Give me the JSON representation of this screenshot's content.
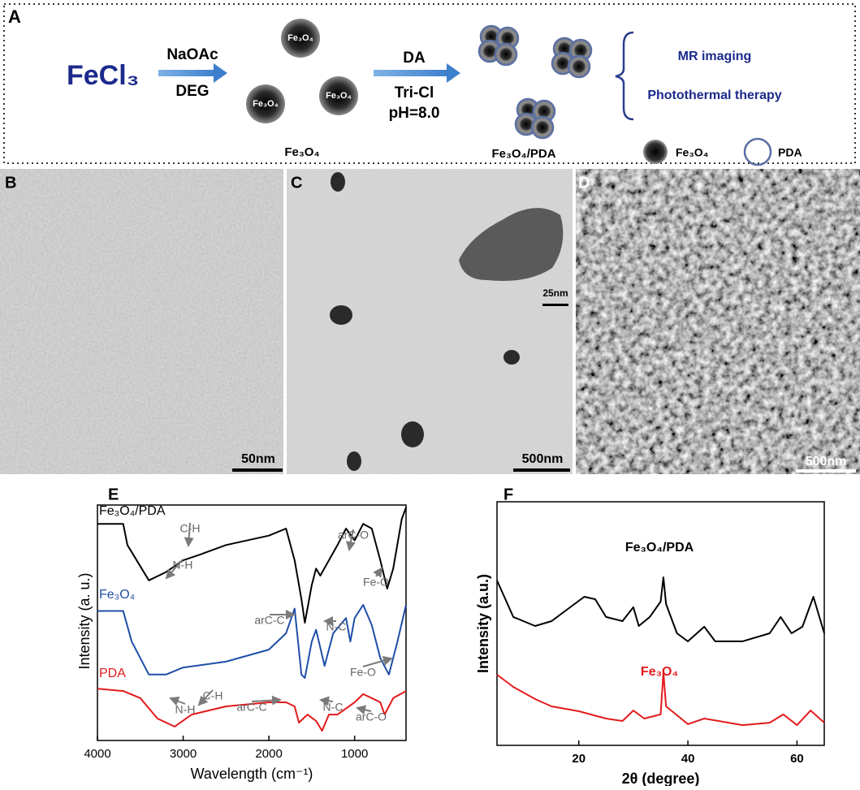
{
  "scheme": {
    "panel": "A",
    "reactant": "FeCl₃",
    "step1": [
      "NaOAc",
      "DEG"
    ],
    "step2": [
      "DA",
      "Tri-Cl",
      "pH=8.0"
    ],
    "sphere_text": "Fe₃O₄",
    "particle_label": "Fe₃O₄",
    "product_label": "Fe₃O₄/PDA",
    "applications": [
      "MR imaging",
      "Photothermal therapy"
    ],
    "legend": [
      "Fe₃O₄",
      "PDA"
    ]
  },
  "micrographs": [
    {
      "panel": "B",
      "scale": "50nm"
    },
    {
      "panel": "C",
      "scale": "500nm",
      "inset_scale": "25nm"
    },
    {
      "panel": "D",
      "scale": "500nm"
    }
  ],
  "chart_data": [
    {
      "type": "line",
      "panel": "E",
      "xlabel": "Wavelength (cm⁻¹)",
      "ylabel": "Intensity (a. u.)",
      "xlim": [
        4000,
        400
      ],
      "xticks": [
        4000,
        3000,
        2000,
        1000
      ],
      "ylim": [
        0,
        100
      ],
      "annotations": [
        "C-H",
        "N-H",
        "arC-O",
        "Fe-O",
        "arC-C",
        "N-C",
        "Fe-O",
        "C-H",
        "N-H",
        "arC-C",
        "N-C",
        "arC-O"
      ],
      "series": [
        {
          "name": "Fe₃O₄/PDA",
          "color": "#000000",
          "x": [
            4000,
            3700,
            3650,
            3400,
            3200,
            3000,
            2800,
            2500,
            2000,
            1800,
            1700,
            1620,
            1580,
            1500,
            1450,
            1400,
            1300,
            1200,
            1100,
            1000,
            900,
            800,
            700,
            620,
            550,
            450,
            400
          ],
          "values": [
            92,
            92,
            83,
            68,
            71.5,
            76.5,
            79,
            83,
            87,
            90,
            76.5,
            60,
            50,
            66,
            73,
            70,
            76.5,
            83,
            90,
            85,
            92,
            90,
            76.5,
            64.5,
            73,
            94,
            99
          ]
        },
        {
          "name": "Fe₃O₄",
          "color": "#1f4ea8",
          "x": [
            4000,
            3700,
            3600,
            3400,
            3200,
            3000,
            2500,
            2000,
            1800,
            1700,
            1620,
            1580,
            1500,
            1450,
            1350,
            1250,
            1100,
            1050,
            1000,
            900,
            800,
            700,
            600,
            500,
            400
          ],
          "values": [
            55,
            55,
            42,
            28,
            28,
            31,
            33.5,
            38.6,
            45.5,
            56,
            28,
            26.5,
            42,
            47,
            31.7,
            45.5,
            52,
            42,
            52,
            57.6,
            49,
            35,
            28,
            42,
            57.6
          ]
        },
        {
          "name": "PDA",
          "color": "#e41a1c",
          "x": [
            4000,
            3700,
            3500,
            3300,
            3100,
            2900,
            2500,
            2000,
            1800,
            1700,
            1650,
            1550,
            1450,
            1380,
            1300,
            1200,
            1000,
            900,
            800,
            700,
            650,
            550,
            400
          ],
          "values": [
            22,
            21,
            18,
            9.3,
            5.9,
            11,
            14.5,
            16.2,
            16.2,
            14.5,
            7.6,
            11,
            8.3,
            4.1,
            11,
            11,
            16.2,
            19.7,
            18,
            16.2,
            11,
            18,
            21
          ]
        }
      ]
    },
    {
      "type": "line",
      "panel": "F",
      "xlabel": "2θ (degree)",
      "ylabel": "Intensity (a.u.)",
      "xlim": [
        5,
        65
      ],
      "xticks": [
        20,
        40,
        60
      ],
      "ylim": [
        0,
        100
      ],
      "series": [
        {
          "name": "Fe₃O₄/PDA",
          "color": "#000000",
          "x": [
            5,
            8,
            12,
            15,
            18,
            21,
            23,
            25,
            28,
            30,
            31,
            33,
            35,
            35.5,
            36,
            38,
            40,
            43,
            45,
            50,
            55,
            57,
            59,
            61,
            63,
            65
          ],
          "values": [
            67.7,
            52.7,
            49,
            51,
            56,
            61,
            60,
            52.7,
            51,
            56.7,
            49,
            52.7,
            59,
            69,
            58,
            46,
            42.7,
            48.7,
            42.7,
            42.7,
            46,
            52.7,
            46,
            48.7,
            61,
            46
          ]
        },
        {
          "name": "Fe₃O₄",
          "color": "#e41a1c",
          "x": [
            5,
            8,
            12,
            15,
            20,
            25,
            28,
            30,
            32,
            35,
            35.5,
            36,
            40,
            43,
            50,
            55,
            57.5,
            60,
            62.5,
            65
          ],
          "values": [
            29,
            24,
            19,
            16,
            14,
            11,
            10,
            14.3,
            11,
            12.7,
            30,
            16,
            8.7,
            11,
            8.3,
            9.3,
            12.7,
            8.3,
            14.3,
            9.3
          ]
        }
      ]
    }
  ]
}
